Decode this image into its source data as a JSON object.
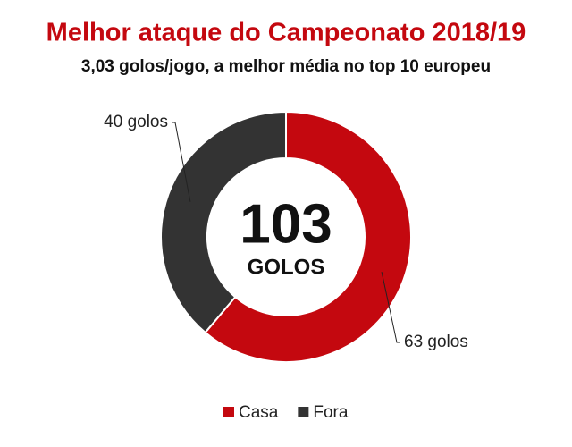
{
  "chart_data": {
    "type": "donut",
    "title": "Melhor ataque do Campeonato 2018/19",
    "subtitle": "3,03 golos/jogo, a melhor média no top 10 europeu",
    "categories": [
      "Casa",
      "Fora"
    ],
    "values": [
      63,
      40
    ],
    "value_labels": [
      "63 golos",
      "40 golos"
    ],
    "colors": [
      "#c4080f",
      "#333333"
    ],
    "total": 103,
    "total_label": "GOLOS",
    "legend": "bottom"
  }
}
